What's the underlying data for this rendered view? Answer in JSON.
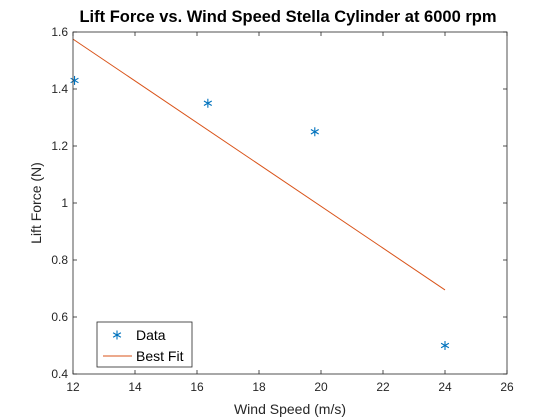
{
  "chart_data": {
    "type": "scatter",
    "title": "Lift Force vs. Wind Speed Stella Cylinder at 6000 rpm",
    "xlabel": "Wind Speed (m/s)",
    "ylabel": "Lift Force (N)",
    "xlim": [
      12,
      26
    ],
    "ylim": [
      0.4,
      1.6
    ],
    "xticks": [
      12,
      14,
      16,
      18,
      20,
      22,
      24,
      26
    ],
    "yticks": [
      0.4,
      0.6,
      0.8,
      1.0,
      1.2,
      1.4,
      1.6
    ],
    "xtick_labels": [
      "12",
      "14",
      "16",
      "18",
      "20",
      "22",
      "24",
      "26"
    ],
    "ytick_labels": [
      "0.4",
      "0.6",
      "0.8",
      "1",
      "1.2",
      "1.4",
      "1.6"
    ],
    "grid": false,
    "legend_position": "bottom-left",
    "series": [
      {
        "name": "Data",
        "kind": "scatter",
        "marker": "asterisk",
        "color": "#0072BD",
        "x": [
          12.05,
          16.35,
          19.8,
          24.0
        ],
        "y": [
          1.43,
          1.35,
          1.25,
          0.5
        ]
      },
      {
        "name": "Best Fit",
        "kind": "line",
        "color": "#D95319",
        "x": [
          12.0,
          24.0
        ],
        "y": [
          1.575,
          0.695
        ]
      }
    ]
  }
}
